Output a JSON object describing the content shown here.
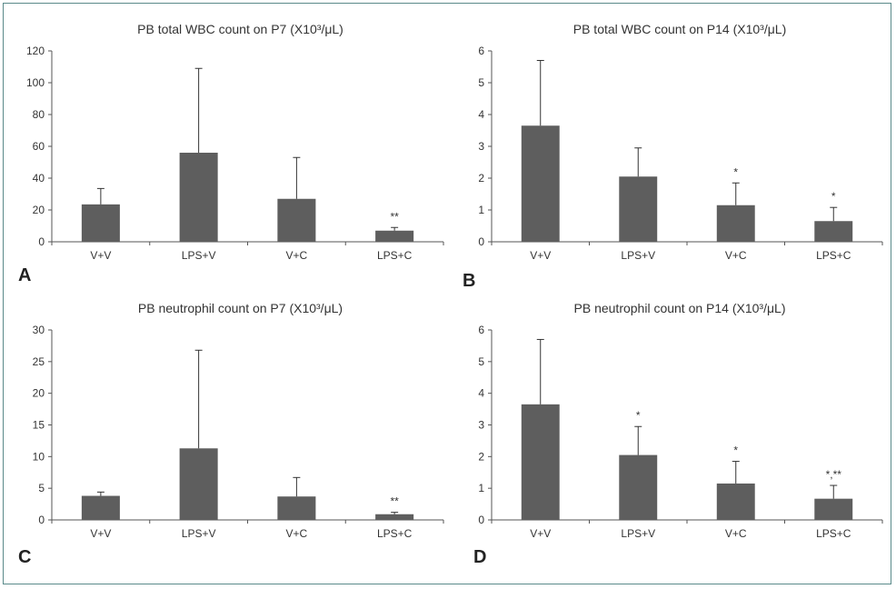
{
  "colors": {
    "bar": "#5e5e5e",
    "axis": "#555555",
    "text": "#333333",
    "frame": "#5a8a8a"
  },
  "chart_data": [
    {
      "panel": "A",
      "type": "bar",
      "title": "PB total WBC count on P7 (X10³/μL)",
      "categories": [
        "V+V",
        "LPS+V",
        "V+C",
        "LPS+C"
      ],
      "values": [
        23.5,
        56,
        27,
        7
      ],
      "errors": [
        10,
        53,
        26,
        2
      ],
      "annotations": [
        "",
        "",
        "",
        "**"
      ],
      "yticks": [
        "0",
        "20",
        "40",
        "60",
        "80",
        "100",
        "120"
      ],
      "ylim": [
        0,
        120
      ]
    },
    {
      "panel": "B",
      "type": "bar",
      "title": "PB total WBC count on P14 (X10³/μL)",
      "categories": [
        "V+V",
        "LPS+V",
        "V+C",
        "LPS+C"
      ],
      "values": [
        3.65,
        2.05,
        1.15,
        0.65
      ],
      "errors": [
        2.05,
        0.9,
        0.7,
        0.43
      ],
      "annotations": [
        "",
        "",
        "*",
        "*"
      ],
      "yticks": [
        "0",
        "1",
        "2",
        "3",
        "4",
        "5",
        "6"
      ],
      "ylim": [
        0,
        6
      ]
    },
    {
      "panel": "C",
      "type": "bar",
      "title": "PB neutrophil count on P7 (X10³/μL)",
      "categories": [
        "V+V",
        "LPS+V",
        "V+C",
        "LPS+C"
      ],
      "values": [
        3.8,
        11.3,
        3.7,
        0.9
      ],
      "errors": [
        0.6,
        15.5,
        3.0,
        0.3
      ],
      "annotations": [
        "",
        "",
        "",
        "**"
      ],
      "yticks": [
        "0",
        "5",
        "10",
        "15",
        "20",
        "25",
        "30"
      ],
      "ylim": [
        0,
        30
      ]
    },
    {
      "panel": "D",
      "type": "bar",
      "title": "PB neutrophil count on P14 (X10³/μL)",
      "categories": [
        "V+V",
        "LPS+V",
        "V+C",
        "LPS+C"
      ],
      "values": [
        3.65,
        2.05,
        1.15,
        0.67
      ],
      "errors": [
        2.05,
        0.9,
        0.7,
        0.42
      ],
      "annotations": [
        "",
        "*",
        "*",
        "*,**"
      ],
      "yticks": [
        "0",
        "1",
        "2",
        "3",
        "4",
        "5",
        "6"
      ],
      "ylim": [
        0,
        6
      ]
    }
  ]
}
